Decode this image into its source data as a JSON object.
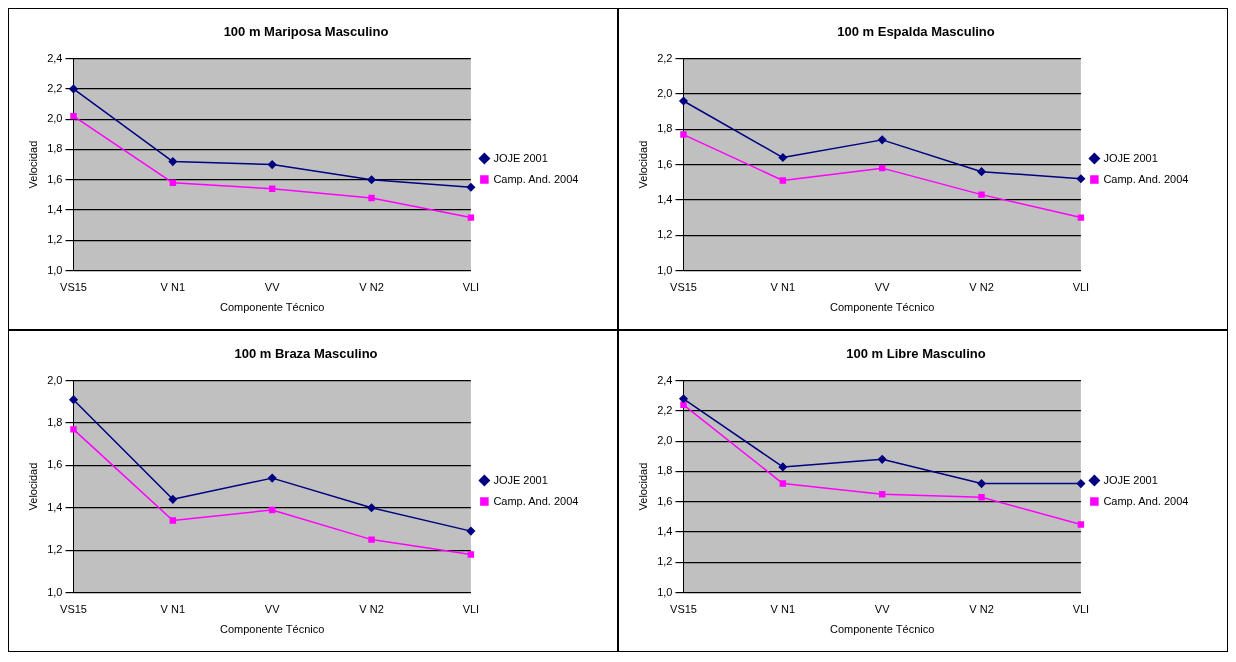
{
  "chart_data": [
    {
      "type": "line",
      "title": "100 m Mariposa Masculino",
      "xlabel": "Componente Técnico",
      "ylabel": "Velocidad",
      "categories": [
        "VS15",
        "V N1",
        "VV",
        "V N2",
        "VLI"
      ],
      "ylim": [
        1.0,
        2.4
      ],
      "yticks": [
        {
          "value": 1.0,
          "label": "1,0"
        },
        {
          "value": 1.2,
          "label": "1,2"
        },
        {
          "value": 1.4,
          "label": "1,4"
        },
        {
          "value": 1.6,
          "label": "1,6"
        },
        {
          "value": 1.8,
          "label": "1,8"
        },
        {
          "value": 2.0,
          "label": "2,0"
        },
        {
          "value": 2.2,
          "label": "2,2"
        },
        {
          "value": 2.4,
          "label": "2,4"
        }
      ],
      "grid": "y",
      "legend": "right",
      "series": [
        {
          "name": "JOJE 2001",
          "color": "#000080",
          "marker": "diamond",
          "values": [
            2.2,
            1.72,
            1.7,
            1.6,
            1.55
          ]
        },
        {
          "name": "Camp. And. 2004",
          "color": "#ff00ff",
          "marker": "square",
          "values": [
            2.02,
            1.58,
            1.54,
            1.48,
            1.35
          ]
        }
      ]
    },
    {
      "type": "line",
      "title": "100 m Espalda Masculino",
      "xlabel": "Componente Técnico",
      "ylabel": "Velocidad",
      "categories": [
        "VS15",
        "V N1",
        "VV",
        "V N2",
        "VLI"
      ],
      "ylim": [
        1.0,
        2.2
      ],
      "yticks": [
        {
          "value": 1.0,
          "label": "1,0"
        },
        {
          "value": 1.2,
          "label": "1,2"
        },
        {
          "value": 1.4,
          "label": "1,4"
        },
        {
          "value": 1.6,
          "label": "1,6"
        },
        {
          "value": 1.8,
          "label": "1,8"
        },
        {
          "value": 2.0,
          "label": "2,0"
        },
        {
          "value": 2.2,
          "label": "2,2"
        }
      ],
      "grid": "y",
      "legend": "right",
      "series": [
        {
          "name": "JOJE 2001",
          "color": "#000080",
          "marker": "diamond",
          "values": [
            1.96,
            1.64,
            1.74,
            1.56,
            1.52
          ]
        },
        {
          "name": "Camp. And. 2004",
          "color": "#ff00ff",
          "marker": "square",
          "values": [
            1.77,
            1.51,
            1.58,
            1.43,
            1.3
          ]
        }
      ]
    },
    {
      "type": "line",
      "title": "100 m Braza Masculino",
      "xlabel": "Componente Técnico",
      "ylabel": "Velocidad",
      "categories": [
        "VS15",
        "V N1",
        "VV",
        "V N2",
        "VLI"
      ],
      "ylim": [
        1.0,
        2.0
      ],
      "yticks": [
        {
          "value": 1.0,
          "label": "1,0"
        },
        {
          "value": 1.2,
          "label": "1,2"
        },
        {
          "value": 1.4,
          "label": "1,4"
        },
        {
          "value": 1.6,
          "label": "1,6"
        },
        {
          "value": 1.8,
          "label": "1,8"
        },
        {
          "value": 2.0,
          "label": "2,0"
        }
      ],
      "grid": "y",
      "legend": "right",
      "series": [
        {
          "name": "JOJE 2001",
          "color": "#000080",
          "marker": "diamond",
          "values": [
            1.91,
            1.44,
            1.54,
            1.4,
            1.29
          ]
        },
        {
          "name": "Camp. And. 2004",
          "color": "#ff00ff",
          "marker": "square",
          "values": [
            1.77,
            1.34,
            1.39,
            1.25,
            1.18
          ]
        }
      ]
    },
    {
      "type": "line",
      "title": "100 m Libre Masculino",
      "xlabel": "Componente Técnico",
      "ylabel": "Velocidad",
      "categories": [
        "VS15",
        "V N1",
        "VV",
        "V N2",
        "VLI"
      ],
      "ylim": [
        1.0,
        2.4
      ],
      "yticks": [
        {
          "value": 1.0,
          "label": "1,0"
        },
        {
          "value": 1.2,
          "label": "1,2"
        },
        {
          "value": 1.4,
          "label": "1,4"
        },
        {
          "value": 1.6,
          "label": "1,6"
        },
        {
          "value": 1.8,
          "label": "1,8"
        },
        {
          "value": 2.0,
          "label": "2,0"
        },
        {
          "value": 2.2,
          "label": "2,2"
        },
        {
          "value": 2.4,
          "label": "2,4"
        }
      ],
      "grid": "y",
      "legend": "right",
      "series": [
        {
          "name": "JOJE 2001",
          "color": "#000080",
          "marker": "diamond",
          "values": [
            2.28,
            1.83,
            1.88,
            1.72,
            1.72
          ]
        },
        {
          "name": "Camp. And. 2004",
          "color": "#ff00ff",
          "marker": "square",
          "values": [
            2.24,
            1.72,
            1.65,
            1.63,
            1.45
          ]
        }
      ]
    }
  ]
}
